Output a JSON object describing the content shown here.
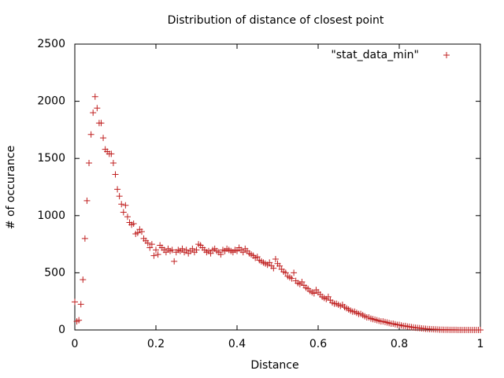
{
  "chart_data": {
    "type": "scatter",
    "title": "Distribution of distance of closest point",
    "x_label": "Distance",
    "y_label": "# of occurance",
    "xlim": [
      0,
      1
    ],
    "ylim": [
      0,
      2500
    ],
    "xticks": [
      0,
      0.2,
      0.4,
      0.6,
      0.8,
      1
    ],
    "yticks": [
      0,
      500,
      1000,
      1500,
      2000,
      2500
    ],
    "legend_position": "top-right",
    "grid": false,
    "series": [
      {
        "name": "\"stat_data_min\"",
        "color": "#c02020",
        "x": [
          0,
          0.005,
          0.01,
          0.015,
          0.02,
          0.025,
          0.03,
          0.035,
          0.04,
          0.045,
          0.05,
          0.055,
          0.06,
          0.065,
          0.07,
          0.075,
          0.08,
          0.085,
          0.09,
          0.095,
          0.1,
          0.105,
          0.11,
          0.115,
          0.12,
          0.125,
          0.13,
          0.135,
          0.14,
          0.145,
          0.15,
          0.155,
          0.16,
          0.165,
          0.17,
          0.175,
          0.18,
          0.185,
          0.19,
          0.195,
          0.2,
          0.205,
          0.21,
          0.215,
          0.22,
          0.225,
          0.23,
          0.235,
          0.24,
          0.245,
          0.25,
          0.255,
          0.26,
          0.265,
          0.27,
          0.275,
          0.28,
          0.285,
          0.29,
          0.295,
          0.3,
          0.305,
          0.31,
          0.315,
          0.32,
          0.325,
          0.33,
          0.335,
          0.34,
          0.345,
          0.35,
          0.355,
          0.36,
          0.365,
          0.37,
          0.375,
          0.38,
          0.385,
          0.39,
          0.395,
          0.4,
          0.405,
          0.41,
          0.415,
          0.42,
          0.425,
          0.43,
          0.435,
          0.44,
          0.445,
          0.45,
          0.455,
          0.46,
          0.465,
          0.47,
          0.475,
          0.48,
          0.485,
          0.49,
          0.495,
          0.5,
          0.505,
          0.51,
          0.515,
          0.52,
          0.525,
          0.53,
          0.535,
          0.54,
          0.545,
          0.55,
          0.555,
          0.56,
          0.565,
          0.57,
          0.575,
          0.58,
          0.585,
          0.59,
          0.595,
          0.6,
          0.605,
          0.61,
          0.615,
          0.62,
          0.625,
          0.63,
          0.635,
          0.64,
          0.645,
          0.65,
          0.655,
          0.66,
          0.665,
          0.67,
          0.675,
          0.68,
          0.685,
          0.69,
          0.695,
          0.7,
          0.705,
          0.71,
          0.715,
          0.72,
          0.725,
          0.73,
          0.735,
          0.74,
          0.745,
          0.75,
          0.755,
          0.76,
          0.765,
          0.77,
          0.775,
          0.78,
          0.785,
          0.79,
          0.795,
          0.8,
          0.805,
          0.81,
          0.815,
          0.82,
          0.825,
          0.83,
          0.835,
          0.84,
          0.845,
          0.85,
          0.855,
          0.86,
          0.865,
          0.87,
          0.875,
          0.88,
          0.885,
          0.89,
          0.895,
          0.9,
          0.905,
          0.91,
          0.915,
          0.92,
          0.925,
          0.93,
          0.935,
          0.94,
          0.945,
          0.95,
          0.955,
          0.96,
          0.965,
          0.97,
          0.975,
          0.98,
          0.985,
          0.99,
          0.995,
          1
        ],
        "values": [
          245,
          75,
          85,
          225,
          440,
          800,
          1130,
          1460,
          1710,
          1900,
          2040,
          1940,
          1810,
          1810,
          1680,
          1580,
          1560,
          1540,
          1540,
          1460,
          1360,
          1230,
          1170,
          1100,
          1030,
          1090,
          990,
          940,
          920,
          930,
          840,
          850,
          880,
          860,
          800,
          780,
          760,
          720,
          750,
          650,
          700,
          660,
          740,
          720,
          700,
          680,
          710,
          690,
          700,
          600,
          680,
          700,
          690,
          710,
          680,
          700,
          670,
          690,
          710,
          680,
          700,
          750,
          740,
          720,
          700,
          680,
          690,
          670,
          700,
          710,
          690,
          680,
          660,
          700,
          690,
          710,
          700,
          690,
          680,
          700,
          690,
          720,
          700,
          680,
          710,
          690,
          670,
          660,
          650,
          630,
          640,
          610,
          600,
          590,
          580,
          570,
          590,
          560,
          540,
          620,
          580,
          560,
          530,
          510,
          500,
          470,
          460,
          450,
          500,
          430,
          410,
          400,
          420,
          390,
          370,
          360,
          340,
          330,
          320,
          350,
          330,
          310,
          290,
          280,
          270,
          290,
          260,
          240,
          230,
          230,
          220,
          210,
          220,
          200,
          190,
          180,
          170,
          160,
          160,
          150,
          140,
          140,
          130,
          120,
          110,
          110,
          100,
          95,
          90,
          85,
          80,
          75,
          75,
          70,
          65,
          60,
          55,
          55,
          50,
          45,
          45,
          40,
          35,
          35,
          30,
          28,
          25,
          22,
          20,
          18,
          16,
          14,
          12,
          10,
          9,
          8,
          7,
          6,
          5,
          4,
          3,
          3,
          2,
          2,
          2,
          1,
          1,
          1,
          1,
          0,
          0,
          0,
          0,
          0,
          0,
          0,
          0,
          0,
          0,
          0,
          0
        ]
      }
    ]
  }
}
